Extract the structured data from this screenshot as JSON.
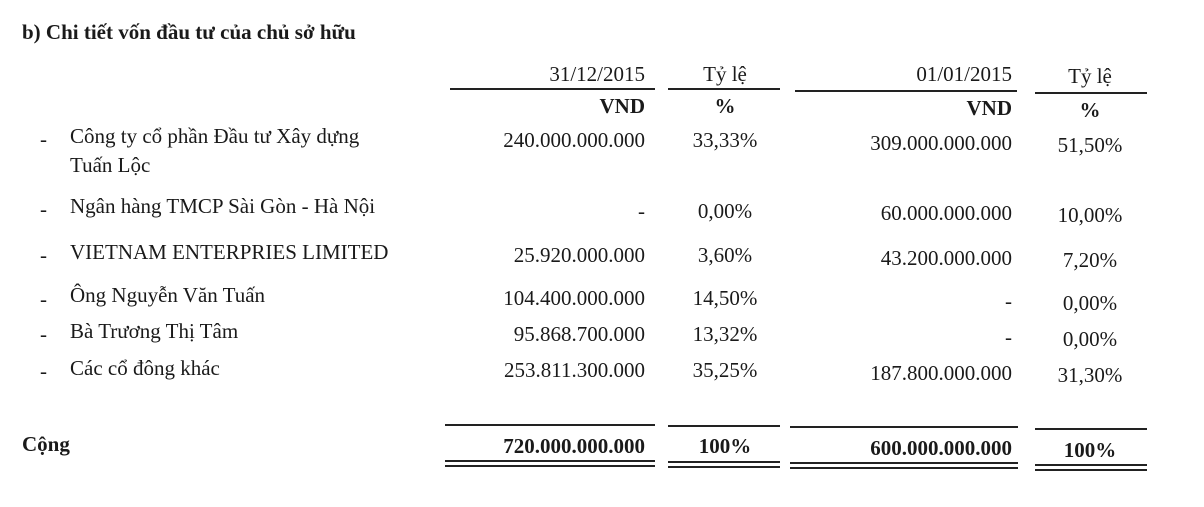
{
  "title": "b) Chi tiết vốn đầu tư của chủ sở hữu",
  "columns": {
    "date1": "31/12/2015",
    "ratio1": "Tỷ lệ",
    "date2": "01/01/2015",
    "ratio2": "Tỷ lệ",
    "unit_vnd": "VND",
    "unit_pct": "%"
  },
  "rows": [
    {
      "dash": "-",
      "name_line1": "Công ty cổ phần Đầu tư Xây dựng",
      "name_line2": "Tuấn Lộc",
      "v1": "240.000.000.000",
      "p1": "33,33%",
      "v2": "309.000.000.000",
      "p2": "51,50%"
    },
    {
      "dash": "-",
      "name_line1": "Ngân hàng TMCP Sài Gòn - Hà Nội",
      "v1": "-",
      "p1": "0,00%",
      "v2": "60.000.000.000",
      "p2": "10,00%"
    },
    {
      "dash": "-",
      "name_line1": "VIETNAM ENTERPRIES LIMITED",
      "v1": "25.920.000.000",
      "p1": "3,60%",
      "v2": "43.200.000.000",
      "p2": "7,20%"
    },
    {
      "dash": "-",
      "name_line1": "Ông Nguyễn Văn Tuấn",
      "v1": "104.400.000.000",
      "p1": "14,50%",
      "v2": "-",
      "p2": "0,00%"
    },
    {
      "dash": "-",
      "name_line1": "Bà Trương Thị Tâm",
      "v1": "95.868.700.000",
      "p1": "13,32%",
      "v2": "-",
      "p2": "0,00%"
    },
    {
      "dash": "-",
      "name_line1": "Các cổ đông khác",
      "v1": "253.811.300.000",
      "p1": "35,25%",
      "v2": "187.800.000.000",
      "p2": "31,30%"
    }
  ],
  "total": {
    "label": "Cộng",
    "v1": "720.000.000.000",
    "p1": "100%",
    "v2": "600.000.000.000",
    "p2": "100%"
  }
}
